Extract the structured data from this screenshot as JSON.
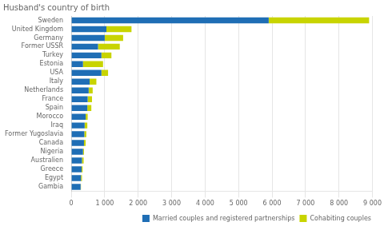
{
  "chart_data": {
    "type": "bar",
    "orientation": "horizontal",
    "stacked": true,
    "title": "Husband's country of birth",
    "categories": [
      "Gambia",
      "Egypt",
      "Greece",
      "Australien",
      "Nigeria",
      "Canada",
      "Former Yugoslavia",
      "Iraq",
      "Morocco",
      "Spain",
      "France",
      "Netherlands",
      "Italy",
      "USA",
      "Estonia",
      "Turkey",
      "Former USSR",
      "Germany",
      "United Kingdom",
      "Sweden"
    ],
    "series": [
      {
        "name": "Married couples and registered partnerships",
        "color": "#1f6eb5",
        "values": [
          280,
          290,
          310,
          320,
          350,
          380,
          390,
          400,
          430,
          480,
          490,
          520,
          550,
          900,
          350,
          900,
          800,
          1000,
          1050,
          5900
        ]
      },
      {
        "name": "Cohabiting couples",
        "color": "#c8d400",
        "values": [
          10,
          30,
          30,
          50,
          30,
          50,
          60,
          80,
          60,
          120,
          130,
          120,
          200,
          200,
          600,
          300,
          650,
          550,
          750,
          3000
        ]
      }
    ],
    "xlim": [
      0,
      9000
    ],
    "xticks": [
      0,
      {
        "value": 1000,
        "label": "1 000"
      },
      {
        "value": 2000,
        "label": "2 000"
      },
      {
        "value": 3000,
        "label": "3 000"
      },
      {
        "value": 4000,
        "label": "4 000"
      },
      {
        "value": 5000,
        "label": "5 000"
      },
      {
        "value": 6000,
        "label": "6 000"
      },
      {
        "value": 7000,
        "label": "7 000"
      },
      {
        "value": 8000,
        "label": "8 000"
      },
      {
        "value": 9000,
        "label": "9 000"
      }
    ],
    "grid": true,
    "legend": "lower right"
  }
}
